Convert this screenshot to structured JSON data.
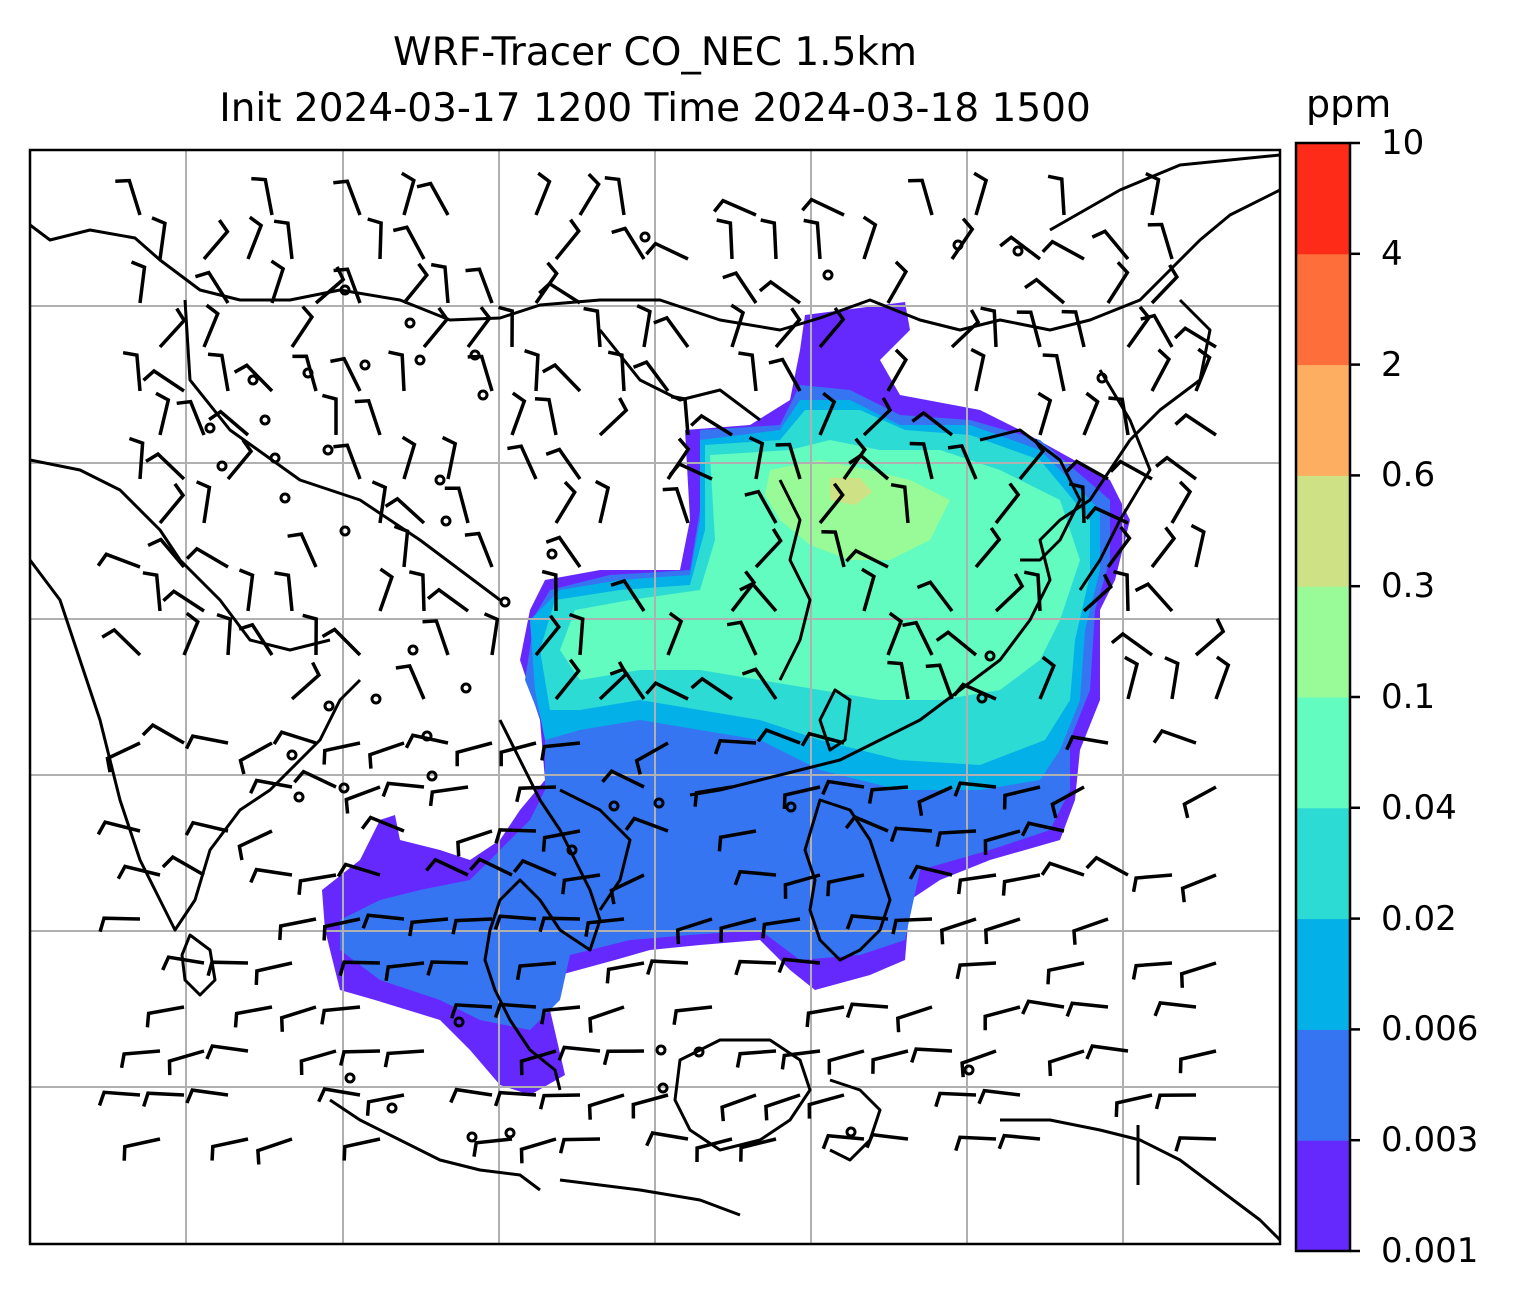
{
  "title": {
    "line1": "WRF-Tracer CO_NEC 1.5km",
    "line2": "Init 2024-03-17 1200 Time 2024-03-18 1500"
  },
  "colorbar": {
    "unit": "ppm",
    "ticks": [
      "0.001",
      "0.003",
      "0.006",
      "0.02",
      "0.04",
      "0.1",
      "0.3",
      "0.6",
      "2",
      "4",
      "10"
    ],
    "colors": [
      "#6529fd",
      "#3575f2",
      "#04b0e8",
      "#2ddbd5",
      "#62fbc0",
      "#99fb97",
      "#cfe185",
      "#fdae61",
      "#fd6e3b",
      "#fd2b17"
    ]
  },
  "map": {
    "layers": [
      "coastlines",
      "country-borders",
      "gridlines",
      "CO tracer concentration",
      "wind barbs"
    ]
  }
}
